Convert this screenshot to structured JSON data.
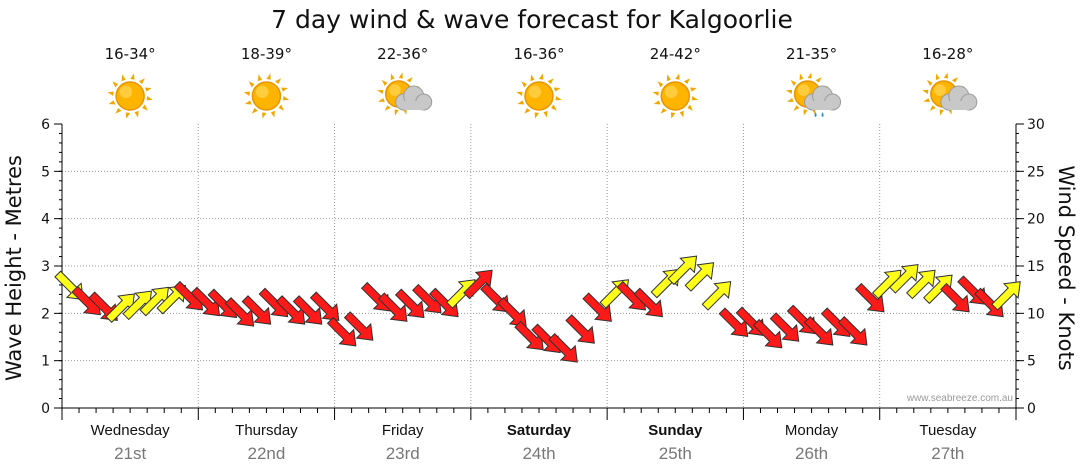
{
  "chart_data": {
    "type": "line",
    "title": "7 day wind & wave forecast for Kalgoorlie",
    "ylabel_left": "Wave Height - Metres",
    "ylabel_right": "Wind Speed - Knots",
    "ylim_left": [
      0,
      6
    ],
    "ylim_right": [
      0,
      30
    ],
    "yticks_left": [
      "0",
      "1",
      "2",
      "3",
      "4",
      "5",
      "6"
    ],
    "yticks_right": [
      "0",
      "5",
      "10",
      "15",
      "20",
      "25",
      "30"
    ],
    "days": [
      {
        "name": "Wednesday",
        "date": "21st",
        "temp": "16-34°",
        "weather": "sunny",
        "bold": false
      },
      {
        "name": "Thursday",
        "date": "22nd",
        "temp": "18-39°",
        "weather": "sunny",
        "bold": false
      },
      {
        "name": "Friday",
        "date": "23rd",
        "temp": "22-36°",
        "weather": "partly-cloudy",
        "bold": false
      },
      {
        "name": "Saturday",
        "date": "24th",
        "temp": "16-36°",
        "weather": "sunny",
        "bold": true
      },
      {
        "name": "Sunday",
        "date": "25th",
        "temp": "24-42°",
        "weather": "sunny",
        "bold": true
      },
      {
        "name": "Monday",
        "date": "26th",
        "temp": "21-35°",
        "weather": "shower",
        "bold": false
      },
      {
        "name": "Tuesday",
        "date": "27th",
        "temp": "16-28°",
        "weather": "partly-cloudy",
        "bold": false
      }
    ],
    "wind_series": {
      "name": "Wind Speed",
      "unit": "knots",
      "hours_per_step": 3,
      "speed_knots": [
        12.8,
        11.2,
        10.6,
        10.7,
        11.0,
        11.4,
        11.6,
        11.7,
        11.1,
        10.9,
        10.0,
        10.2,
        11.0,
        10.2,
        10.2,
        10.6,
        7.9,
        8.5,
        11.6,
        10.5,
        10.9,
        11.4,
        11.0,
        12.2,
        13.2,
        11.5,
        10.0,
        7.5,
        7.2,
        6.2,
        8.2,
        10.5,
        12.2,
        11.7,
        11.0,
        13.3,
        14.7,
        14.0,
        12.0,
        8.9,
        9.0,
        7.7,
        8.4,
        9.2,
        8.0,
        8.9,
        8.0,
        11.5,
        13.2,
        13.8,
        13.2,
        12.7,
        11.5,
        12.3,
        11.0,
        12.0
      ],
      "direction_deg": [
        135,
        135,
        135,
        45,
        45,
        45,
        45,
        135,
        135,
        135,
        135,
        135,
        135,
        135,
        135,
        135,
        135,
        135,
        135,
        135,
        135,
        135,
        135,
        45,
        45,
        135,
        135,
        135,
        135,
        135,
        135,
        135,
        45,
        135,
        135,
        45,
        45,
        45,
        45,
        135,
        135,
        135,
        135,
        135,
        135,
        135,
        135,
        135,
        45,
        45,
        45,
        45,
        135,
        135,
        135,
        45
      ],
      "category": [
        "yellow",
        "red",
        "red",
        "yellow",
        "yellow",
        "yellow",
        "yellow",
        "red",
        "red",
        "red",
        "red",
        "red",
        "red",
        "red",
        "red",
        "red",
        "red",
        "red",
        "red",
        "red",
        "red",
        "red",
        "red",
        "yellow",
        "red",
        "red",
        "red",
        "red",
        "red",
        "red",
        "red",
        "red",
        "yellow",
        "red",
        "red",
        "yellow",
        "yellow",
        "yellow",
        "yellow",
        "red",
        "red",
        "red",
        "red",
        "red",
        "red",
        "red",
        "red",
        "red",
        "yellow",
        "yellow",
        "yellow",
        "yellow",
        "red",
        "red",
        "red",
        "yellow"
      ]
    },
    "colors": {
      "red": "#ff1a1a",
      "yellow": "#ffff1a",
      "arrow_outline": "#303030",
      "grid": "#9a9a9a",
      "axis": "#000000"
    },
    "watermark": "www.seabreeze.com.au"
  }
}
